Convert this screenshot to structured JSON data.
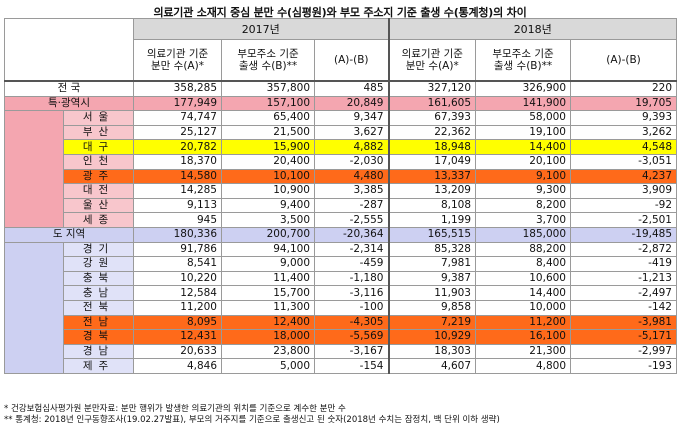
{
  "title": "의료기관 소재지 중심 분만 수(심평원)와 부모 주소지 기준 출생 수(통계청)의 차이",
  "colors": {
    "metro_pink": "#f4a6b0",
    "metro_pink_light": "#f8c6cc",
    "province_lavender": "#cdd0f2",
    "province_lavender_light": "#e0e2f8",
    "highlight_yellow": "#ffff00",
    "highlight_orange": "#ff6a1a",
    "header_gray": "#d9d9d9"
  },
  "header": {
    "year_2017": "2017년",
    "year_2018": "2018년",
    "col_a_line1": "의료기관 기준",
    "col_a_line2": "분만 수(A)*",
    "col_b_line1": "부모주소 기준",
    "col_b_line2": "출생 수(B)**",
    "col_diff": "(A)-(B)",
    "col_a18_line1": "의료기관 기준",
    "col_a18_line2": "분만 수(A)*",
    "col_b18_line1": "부모주소 기준",
    "col_b18_line2": "출생 수(B)**",
    "col_diff18": "(A)-(B)"
  },
  "rows": [
    {
      "label": "전 국",
      "group": "total",
      "v": [
        "358,285",
        "357,800",
        "485",
        "327,120",
        "326,900",
        "220"
      ]
    },
    {
      "label": "특·광역시",
      "group": "metro_total",
      "v": [
        "177,949",
        "157,100",
        "20,849",
        "161,605",
        "141,900",
        "19,705"
      ]
    },
    {
      "label": "서울",
      "group": "metro",
      "hl": "",
      "v": [
        "74,747",
        "65,400",
        "9,347",
        "67,393",
        "58,000",
        "9,393"
      ]
    },
    {
      "label": "부산",
      "group": "metro",
      "hl": "",
      "v": [
        "25,127",
        "21,500",
        "3,627",
        "22,362",
        "19,100",
        "3,262"
      ]
    },
    {
      "label": "대구",
      "group": "metro",
      "hl": "yellow",
      "v": [
        "20,782",
        "15,900",
        "4,882",
        "18,948",
        "14,400",
        "4,548"
      ]
    },
    {
      "label": "인천",
      "group": "metro",
      "hl": "",
      "v": [
        "18,370",
        "20,400",
        "-2,030",
        "17,049",
        "20,100",
        "-3,051"
      ]
    },
    {
      "label": "광주",
      "group": "metro",
      "hl": "orange",
      "v": [
        "14,580",
        "10,100",
        "4,480",
        "13,337",
        "9,100",
        "4,237"
      ]
    },
    {
      "label": "대전",
      "group": "metro",
      "hl": "",
      "v": [
        "14,285",
        "10,900",
        "3,385",
        "13,209",
        "9,300",
        "3,909"
      ]
    },
    {
      "label": "울산",
      "group": "metro",
      "hl": "",
      "v": [
        "9,113",
        "9,400",
        "-287",
        "8,108",
        "8,200",
        "-92"
      ]
    },
    {
      "label": "세종",
      "group": "metro",
      "hl": "",
      "v": [
        "945",
        "3,500",
        "-2,555",
        "1,199",
        "3,700",
        "-2,501"
      ]
    },
    {
      "label": "도 지역",
      "group": "prov_total",
      "v": [
        "180,336",
        "200,700",
        "-20,364",
        "165,515",
        "185,000",
        "-19,485"
      ]
    },
    {
      "label": "경기",
      "group": "prov",
      "hl": "",
      "v": [
        "91,786",
        "94,100",
        "-2,314",
        "85,328",
        "88,200",
        "-2,872"
      ]
    },
    {
      "label": "강원",
      "group": "prov",
      "hl": "",
      "v": [
        "8,541",
        "9,000",
        "-459",
        "7,981",
        "8,400",
        "-419"
      ]
    },
    {
      "label": "충북",
      "group": "prov",
      "hl": "",
      "v": [
        "10,220",
        "11,400",
        "-1,180",
        "9,387",
        "10,600",
        "-1,213"
      ]
    },
    {
      "label": "충남",
      "group": "prov",
      "hl": "",
      "v": [
        "12,584",
        "15,700",
        "-3,116",
        "11,903",
        "14,400",
        "-2,497"
      ]
    },
    {
      "label": "전북",
      "group": "prov",
      "hl": "",
      "v": [
        "11,200",
        "11,300",
        "-100",
        "9,858",
        "10,000",
        "-142"
      ]
    },
    {
      "label": "전남",
      "group": "prov",
      "hl": "orange",
      "v": [
        "8,095",
        "12,400",
        "-4,305",
        "7,219",
        "11,200",
        "-3,981"
      ]
    },
    {
      "label": "경북",
      "group": "prov",
      "hl": "orange",
      "v": [
        "12,431",
        "18,000",
        "-5,569",
        "10,929",
        "16,100",
        "-5,171"
      ]
    },
    {
      "label": "경남",
      "group": "prov",
      "hl": "",
      "v": [
        "20,633",
        "23,800",
        "-3,167",
        "18,303",
        "21,300",
        "-2,997"
      ]
    },
    {
      "label": "제주",
      "group": "prov",
      "hl": "",
      "v": [
        "4,846",
        "5,000",
        "-154",
        "4,607",
        "4,800",
        "-193"
      ]
    }
  ],
  "footnotes": [
    "* 건강보험심사평가원 분만자료: 분만 행위가 발생한 의료기관의 위치를 기준으로 계수한 분만 수",
    "** 통계청: 2018년 인구동향조사(19.02.27발표), 부모의 거주지를 기준으로 출생신고 된 숫자(2018년 수치는 잠정치, 백 단위 이하 생략)"
  ]
}
